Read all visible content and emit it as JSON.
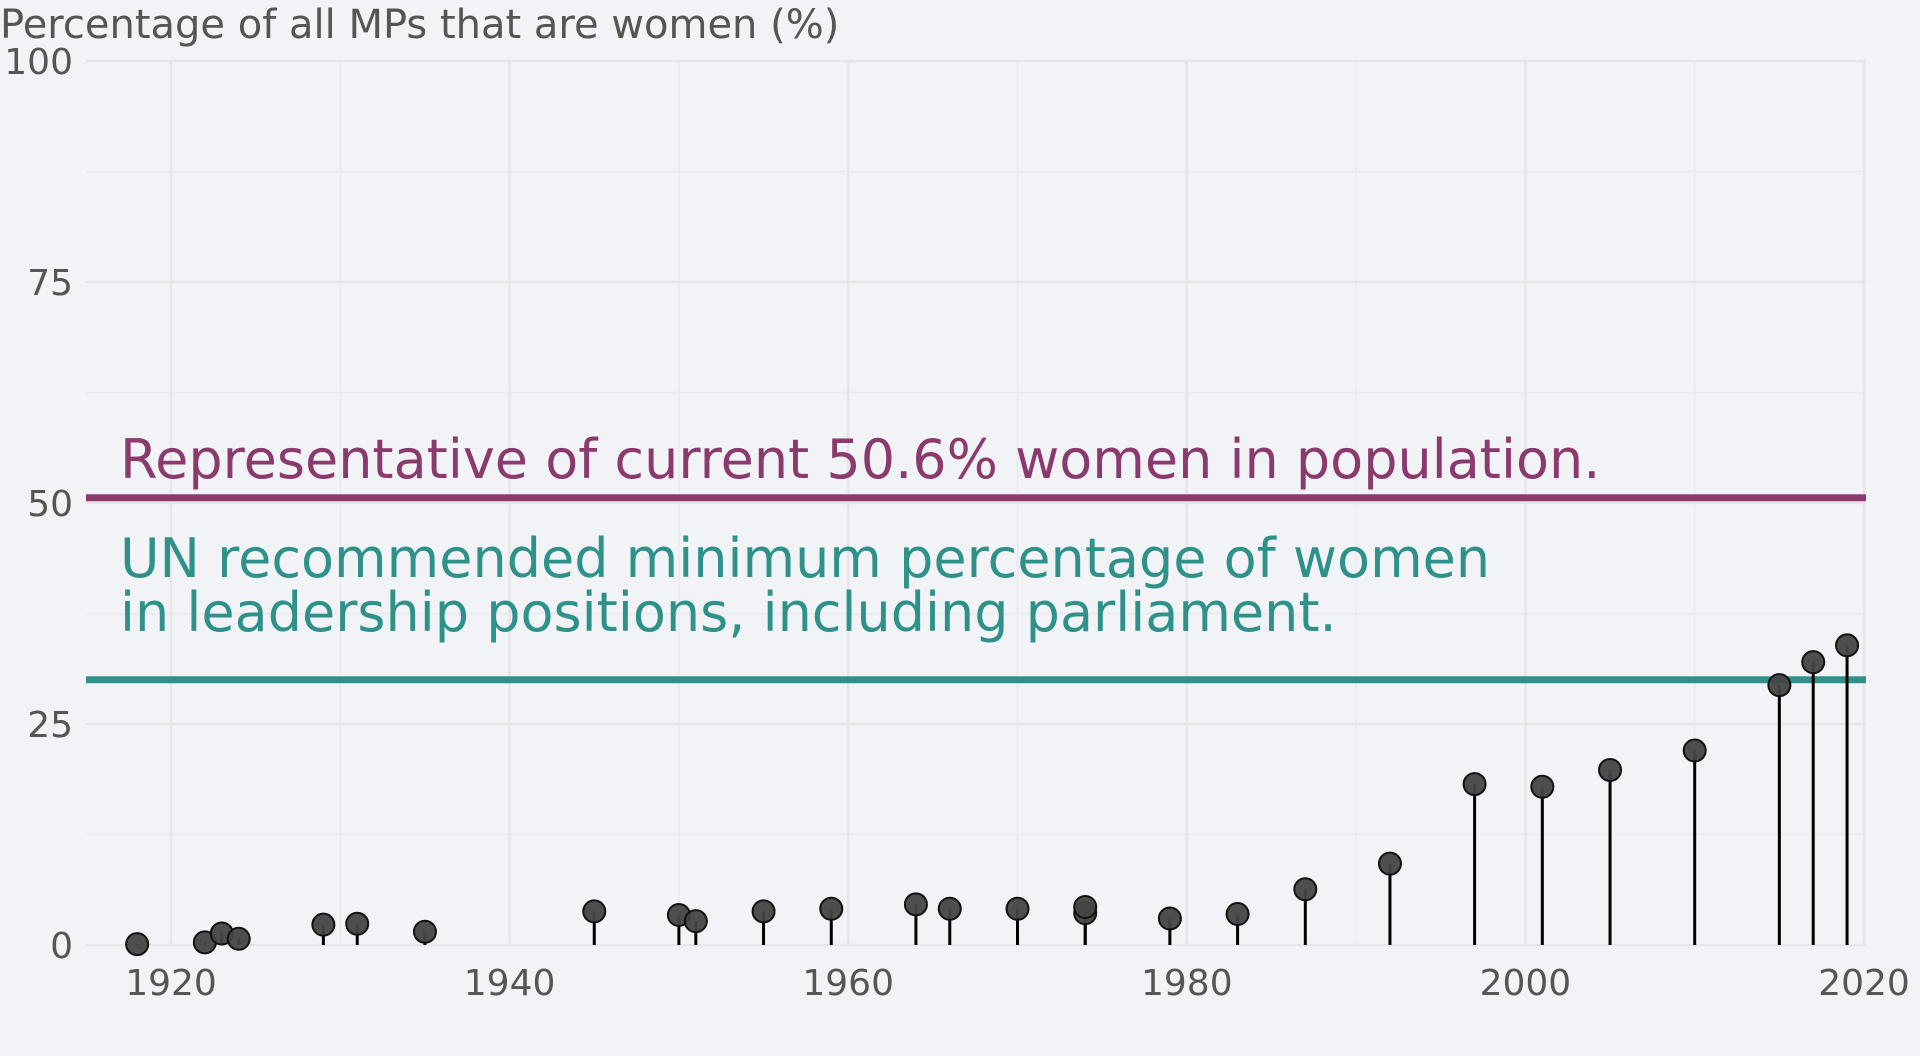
{
  "chart_data": {
    "type": "lollipop",
    "title": "Percentage of all MPs that are women (%)",
    "xlabel": "",
    "ylabel": "Percentage of all MPs that are women (%)",
    "xlim": [
      1915,
      2020
    ],
    "ylim": [
      0,
      100
    ],
    "x_ticks": [
      1920,
      1940,
      1960,
      1980,
      2000,
      2020
    ],
    "y_ticks": [
      0,
      25,
      50,
      75,
      100
    ],
    "grid": true,
    "x": [
      1918,
      1922,
      1923,
      1924,
      1929,
      1931,
      1935,
      1945,
      1950,
      1951,
      1955,
      1959,
      1964,
      1966,
      1970,
      1974,
      1974,
      1979,
      1983,
      1987,
      1992,
      1997,
      2001,
      2005,
      2010,
      2015,
      2017,
      2019
    ],
    "values": [
      0.1,
      0.3,
      1.3,
      0.7,
      2.3,
      2.4,
      1.5,
      3.8,
      3.4,
      2.7,
      3.8,
      4.1,
      4.6,
      4.1,
      4.1,
      3.6,
      4.3,
      3.0,
      3.5,
      6.3,
      9.2,
      18.2,
      17.9,
      19.8,
      22.0,
      29.4,
      32.0,
      33.9
    ],
    "reference_lines": [
      {
        "value": 50.6,
        "color": "#8b3a6e",
        "label_lines": [
          "Representative of current 50.6% women in population."
        ]
      },
      {
        "value": 30,
        "color": "#2e918a",
        "label_lines": [
          "UN recommended minimum percentage of women",
          "in leadership positions, including parliament."
        ]
      }
    ],
    "point_color": "#444444",
    "background": "#f2f3f7"
  }
}
